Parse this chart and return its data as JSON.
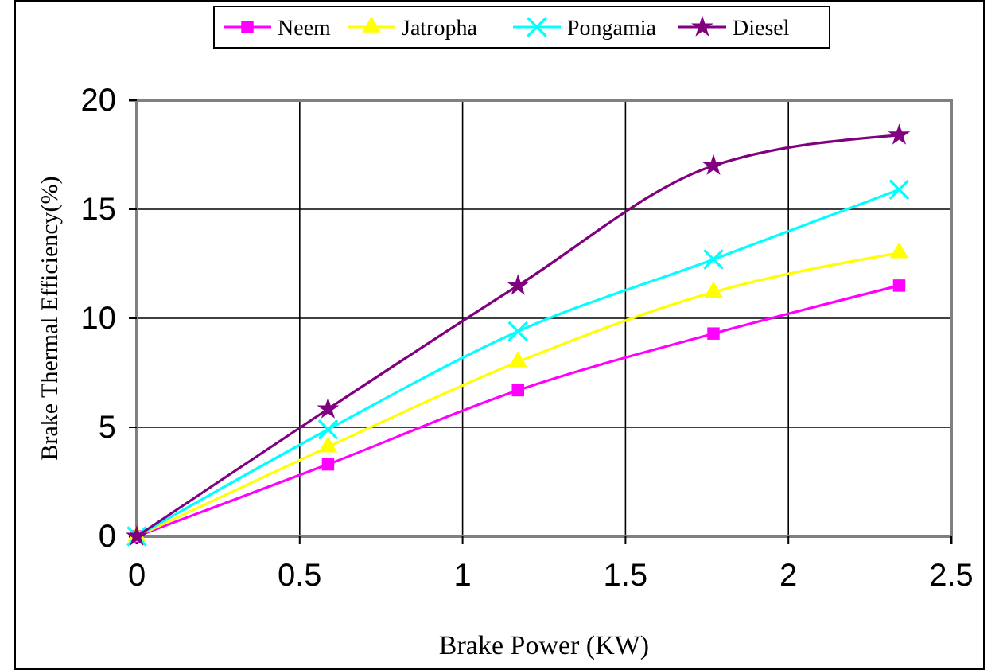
{
  "chart_data": {
    "type": "line",
    "xlabel": "Brake Power (KW)",
    "ylabel": "Brake Thermal Efficiency(%)",
    "x": [
      0,
      0.587,
      1.17,
      1.77,
      2.34
    ],
    "series": [
      {
        "name": "Neem",
        "color": "#ff00ff",
        "marker": "square",
        "values": [
          0,
          3.3,
          6.7,
          9.3,
          11.5
        ]
      },
      {
        "name": "Jatropha",
        "color": "#ffff00",
        "marker": "triangle",
        "values": [
          0,
          4.1,
          8.0,
          11.2,
          13.0
        ]
      },
      {
        "name": "Pongamia",
        "color": "#00ffff",
        "marker": "cross",
        "values": [
          0,
          4.9,
          9.4,
          12.7,
          15.9
        ]
      },
      {
        "name": "Diesel",
        "color": "#800080",
        "marker": "star",
        "values": [
          0,
          5.84,
          11.5,
          17.0,
          18.4
        ]
      }
    ],
    "xlim": [
      0,
      2.5
    ],
    "xticks": [
      0,
      0.5,
      1,
      1.5,
      2,
      2.5
    ],
    "ylim": [
      0,
      20
    ],
    "yticks": [
      0,
      5,
      10,
      15,
      20
    ],
    "grid": true,
    "legend": "top"
  }
}
